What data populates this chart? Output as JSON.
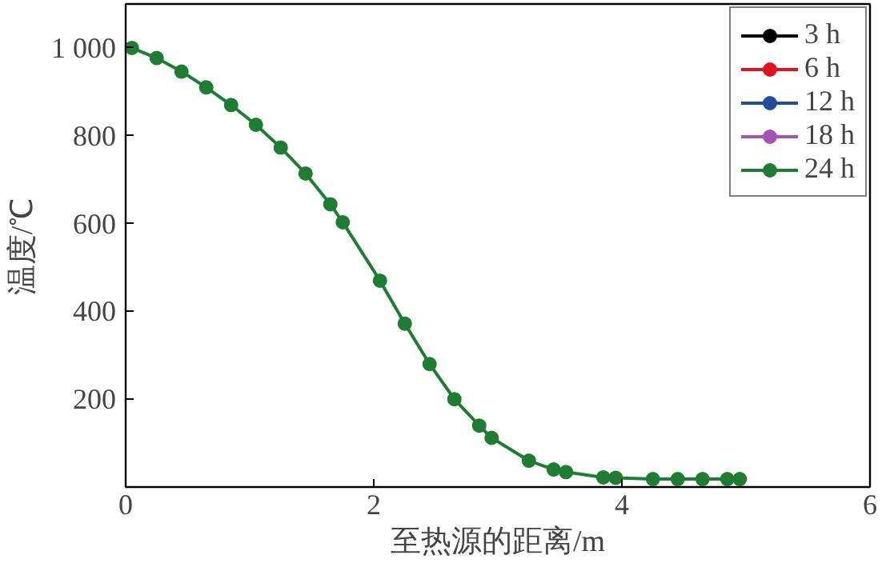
{
  "chart_data": {
    "type": "line",
    "xlabel": "至热源的距离/m",
    "ylabel": "温度/℃",
    "x": [
      0.05,
      0.25,
      0.45,
      0.65,
      0.85,
      1.05,
      1.25,
      1.45,
      1.65,
      1.75,
      2.05,
      2.25,
      2.45,
      2.65,
      2.85,
      2.95,
      3.25,
      3.45,
      3.55,
      3.85,
      3.95,
      4.25,
      4.45,
      4.65,
      4.85,
      4.95
    ],
    "series": [
      {
        "name": "3 h",
        "color": "#000000",
        "values": [
          null,
          null,
          null,
          null,
          null,
          null,
          null,
          null,
          null,
          null,
          null,
          null,
          null,
          null,
          null,
          null,
          null,
          null,
          null,
          null,
          null,
          null,
          null,
          null,
          null,
          null
        ]
      },
      {
        "name": "6 h",
        "color": "#e0141e",
        "values": [
          null,
          null,
          null,
          null,
          null,
          null,
          null,
          null,
          null,
          null,
          null,
          null,
          null,
          null,
          null,
          null,
          null,
          null,
          null,
          null,
          null,
          null,
          null,
          null,
          null,
          null
        ]
      },
      {
        "name": "12 h",
        "color": "#1f4e9c",
        "values": [
          null,
          null,
          null,
          null,
          null,
          null,
          null,
          null,
          null,
          null,
          null,
          null,
          null,
          null,
          null,
          null,
          null,
          null,
          null,
          null,
          null,
          null,
          null,
          null,
          null,
          null
        ]
      },
      {
        "name": "18 h",
        "color": "#a452b4",
        "values": [
          null,
          null,
          null,
          null,
          null,
          null,
          null,
          null,
          null,
          null,
          null,
          null,
          null,
          null,
          null,
          null,
          null,
          null,
          null,
          null,
          null,
          null,
          null,
          null,
          null,
          null
        ]
      },
      {
        "name": "24 h",
        "color": "#1e7d32",
        "values": [
          1000,
          977,
          946,
          910,
          870,
          825,
          773,
          714,
          644,
          603,
          470,
          372,
          280,
          200,
          140,
          112,
          60,
          40,
          34,
          22,
          21,
          18,
          18,
          18,
          18,
          18
        ]
      }
    ],
    "xlim": [
      0,
      6
    ],
    "xticks": [
      0,
      2,
      4,
      6
    ],
    "ylim": [
      0,
      1100
    ],
    "yticks": [
      200,
      400,
      600,
      800,
      {
        "value": 1000,
        "label": "1 000"
      }
    ],
    "marker": "circle",
    "line_style": "solid",
    "legend": "top right",
    "grid": false
  }
}
